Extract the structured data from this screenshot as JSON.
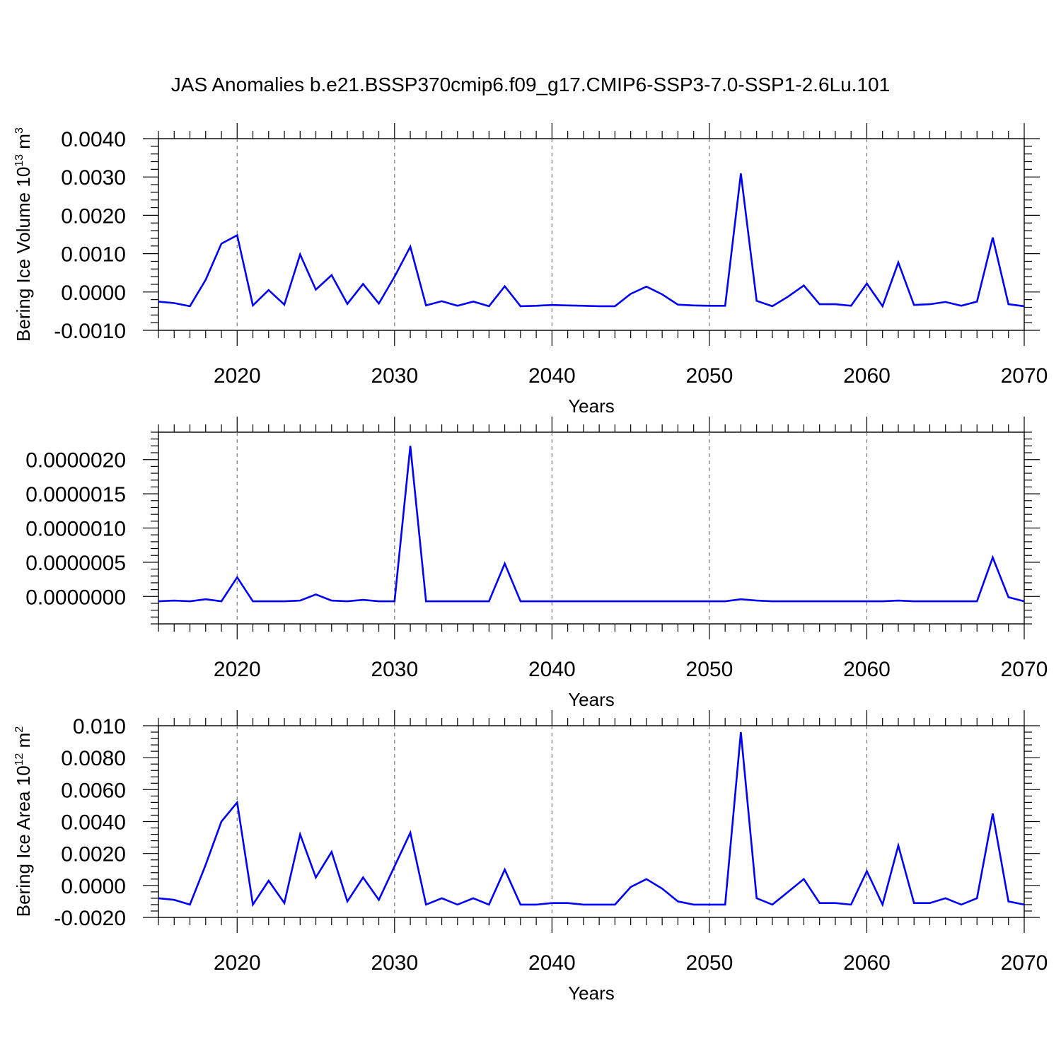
{
  "title": "JAS Anomalies b.e21.BSSP370cmip6.f09_g17.CMIP6-SSP3-7.0-SSP1-2.6Lu.101",
  "chart_data": [
    {
      "type": "line",
      "xlabel": "Years",
      "ylabel": {
        "text": "Bering Ice Volume 10",
        "exp": "13",
        "unit": " m",
        "unitexp": "3"
      },
      "xlim": [
        2015,
        2070
      ],
      "ylim": [
        -0.001,
        0.004
      ],
      "xticks": [
        "2020",
        "2030",
        "2040",
        "2050",
        "2060",
        "2070"
      ],
      "yticks": [
        "0.0040",
        "0.0030",
        "0.0020",
        "0.0010",
        "0.0000",
        "-0.0010"
      ],
      "grid": "vertical dashed at major x ticks",
      "line_color": "#0000ff",
      "x": [
        2015,
        2016,
        2017,
        2018,
        2019,
        2020,
        2021,
        2022,
        2023,
        2024,
        2025,
        2026,
        2027,
        2028,
        2029,
        2030,
        2031,
        2032,
        2033,
        2034,
        2035,
        2036,
        2037,
        2038,
        2039,
        2040,
        2041,
        2042,
        2043,
        2044,
        2045,
        2046,
        2047,
        2048,
        2049,
        2050,
        2051,
        2052,
        2053,
        2054,
        2055,
        2056,
        2057,
        2058,
        2059,
        2060,
        2061,
        2062,
        2063,
        2064,
        2065,
        2066,
        2067,
        2068,
        2069,
        2070
      ],
      "values": [
        -0.00025,
        -0.00029,
        -0.00037,
        0.00032,
        0.00126,
        0.00148,
        -0.00035,
        5e-05,
        -0.00033,
        0.00098,
        6e-05,
        0.00044,
        -0.00031,
        0.00021,
        -0.0003,
        0.0004,
        0.00118,
        -0.00035,
        -0.00024,
        -0.00036,
        -0.00025,
        -0.00037,
        0.00015,
        -0.00037,
        -0.00036,
        -0.00034,
        -0.00035,
        -0.00036,
        -0.00037,
        -0.00037,
        -5e-05,
        0.00014,
        -6e-05,
        -0.00033,
        -0.00035,
        -0.00036,
        -0.00036,
        0.00309,
        -0.00023,
        -0.00037,
        -0.00012,
        0.00017,
        -0.00032,
        -0.00032,
        -0.00036,
        0.00022,
        -0.00037,
        0.00077,
        -0.00034,
        -0.00032,
        -0.00026,
        -0.00036,
        -0.00025,
        0.00142,
        -0.00032,
        -0.00037
      ]
    },
    {
      "type": "line",
      "xlabel": "Years",
      "ylabel": {
        "text": "",
        "exp": "",
        "unit": "",
        "unitexp": ""
      },
      "xlim": [
        2015,
        2070
      ],
      "ylim": [
        -4e-07,
        2.4e-06
      ],
      "xticks": [
        "2020",
        "2030",
        "2040",
        "2050",
        "2060",
        "2070"
      ],
      "yticks": [
        "0.0000020",
        "0.0000015",
        "0.0000010",
        "0.0000005",
        "0.0000000"
      ],
      "grid": "vertical dashed at major x ticks",
      "line_color": "#0000ff",
      "x": [
        2015,
        2016,
        2017,
        2018,
        2019,
        2020,
        2021,
        2022,
        2023,
        2024,
        2025,
        2026,
        2027,
        2028,
        2029,
        2030,
        2031,
        2032,
        2033,
        2034,
        2035,
        2036,
        2037,
        2038,
        2039,
        2040,
        2041,
        2042,
        2043,
        2044,
        2045,
        2046,
        2047,
        2048,
        2049,
        2050,
        2051,
        2052,
        2053,
        2054,
        2055,
        2056,
        2057,
        2058,
        2059,
        2060,
        2061,
        2062,
        2063,
        2064,
        2065,
        2066,
        2067,
        2068,
        2069,
        2070
      ],
      "values": [
        -7e-08,
        -6e-08,
        -7e-08,
        -4e-08,
        -7e-08,
        2.8e-07,
        -7e-08,
        -7e-08,
        -7e-08,
        -6e-08,
        3e-08,
        -6e-08,
        -7e-08,
        -5e-08,
        -7e-08,
        -7e-08,
        2.2e-06,
        -7e-08,
        -7e-08,
        -7e-08,
        -7e-08,
        -7e-08,
        4.8e-07,
        -7e-08,
        -7e-08,
        -7e-08,
        -7e-08,
        -7e-08,
        -7e-08,
        -7e-08,
        -7e-08,
        -7e-08,
        -7e-08,
        -7e-08,
        -7e-08,
        -7e-08,
        -7e-08,
        -4e-08,
        -6e-08,
        -7e-08,
        -7e-08,
        -7e-08,
        -7e-08,
        -7e-08,
        -7e-08,
        -7e-08,
        -7e-08,
        -6e-08,
        -7e-08,
        -7e-08,
        -7e-08,
        -7e-08,
        -7e-08,
        5.7e-07,
        -1e-08,
        -7e-08
      ]
    },
    {
      "type": "line",
      "xlabel": "Years",
      "ylabel": {
        "text": "Bering Ice Area 10",
        "exp": "12",
        "unit": " m",
        "unitexp": "2"
      },
      "xlim": [
        2015,
        2070
      ],
      "ylim": [
        -0.002,
        0.01
      ],
      "xticks": [
        "2020",
        "2030",
        "2040",
        "2050",
        "2060",
        "2070"
      ],
      "yticks": [
        "0.010",
        "0.0080",
        "0.0060",
        "0.0040",
        "0.0020",
        "0.0000",
        "-0.0020"
      ],
      "grid": "vertical dashed at major x ticks",
      "line_color": "#0000ff",
      "x": [
        2015,
        2016,
        2017,
        2018,
        2019,
        2020,
        2021,
        2022,
        2023,
        2024,
        2025,
        2026,
        2027,
        2028,
        2029,
        2030,
        2031,
        2032,
        2033,
        2034,
        2035,
        2036,
        2037,
        2038,
        2039,
        2040,
        2041,
        2042,
        2043,
        2044,
        2045,
        2046,
        2047,
        2048,
        2049,
        2050,
        2051,
        2052,
        2053,
        2054,
        2055,
        2056,
        2057,
        2058,
        2059,
        2060,
        2061,
        2062,
        2063,
        2064,
        2065,
        2066,
        2067,
        2068,
        2069,
        2070
      ],
      "values": [
        -0.0008,
        -0.0009,
        -0.0012,
        0.0013,
        0.004,
        0.0052,
        -0.0012,
        0.0003,
        -0.0011,
        0.0032,
        0.0005,
        0.0021,
        -0.001,
        0.0005,
        -0.0009,
        0.0012,
        0.0033,
        -0.0012,
        -0.0008,
        -0.0012,
        -0.0008,
        -0.0012,
        0.001,
        -0.0012,
        -0.0012,
        -0.0011,
        -0.0011,
        -0.0012,
        -0.0012,
        -0.0012,
        -0.0001,
        0.0004,
        -0.0002,
        -0.001,
        -0.0012,
        -0.0012,
        -0.0012,
        0.0096,
        -0.0008,
        -0.0012,
        -0.0004,
        0.0004,
        -0.0011,
        -0.0011,
        -0.0012,
        0.0009,
        -0.0012,
        0.0025,
        -0.0011,
        -0.0011,
        -0.0008,
        -0.0012,
        -0.0008,
        0.0045,
        -0.001,
        -0.0012
      ]
    }
  ]
}
